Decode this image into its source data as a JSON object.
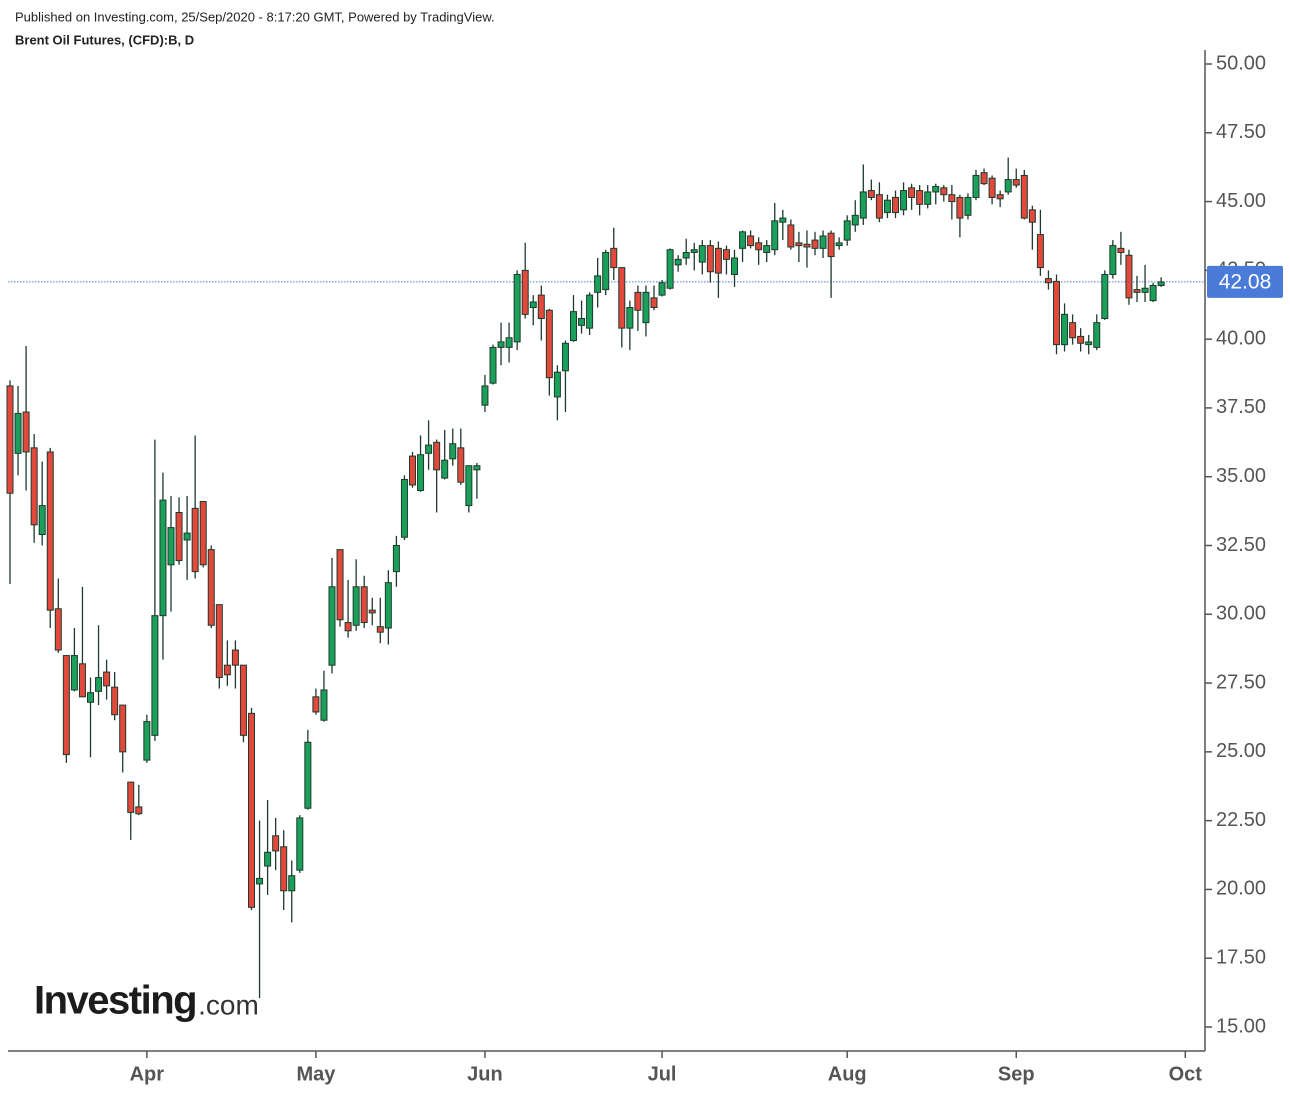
{
  "header": {
    "published": "Published on Investing.com, 25/Sep/2020 - 8:17:20 GMT, Powered by TradingView.",
    "title": "Brent Oil Futures, (CFD):B, D"
  },
  "watermark": {
    "brand": "Investing",
    "suffix": ".com"
  },
  "chart_data": {
    "type": "candlestick",
    "up_color": "#1aa05a",
    "down_color": "#e2483c",
    "line_color": "#1e3a2c",
    "last_price": 42.08,
    "last_price_color": "#4a7bd8",
    "ylim": [
      15,
      50.7
    ],
    "yticks": [
      {
        "value": 15,
        "label": "15.00"
      },
      {
        "value": 17.5,
        "label": "17.50"
      },
      {
        "value": 20,
        "label": "20.00"
      },
      {
        "value": 22.5,
        "label": "22.50"
      },
      {
        "value": 25,
        "label": "25.00"
      },
      {
        "value": 27.5,
        "label": "27.50"
      },
      {
        "value": 30,
        "label": "30.00"
      },
      {
        "value": 32.5,
        "label": "32.50"
      },
      {
        "value": 35,
        "label": "35.00"
      },
      {
        "value": 37.5,
        "label": "37.50"
      },
      {
        "value": 40,
        "label": "40.00"
      },
      {
        "value": 42.5,
        "label": "42.50"
      },
      {
        "value": 45,
        "label": "45.00"
      },
      {
        "value": 47.5,
        "label": "47.50"
      },
      {
        "value": 50,
        "label": "50.00"
      }
    ],
    "categories": [
      null,
      null,
      null,
      null,
      null,
      null,
      null,
      null,
      null,
      null,
      null,
      null,
      null,
      null,
      null,
      null,
      null,
      "Apr",
      null,
      null,
      null,
      null,
      null,
      null,
      null,
      null,
      null,
      null,
      null,
      null,
      null,
      null,
      null,
      null,
      null,
      null,
      null,
      null,
      "May",
      null,
      null,
      null,
      null,
      null,
      null,
      null,
      null,
      null,
      null,
      null,
      null,
      null,
      null,
      null,
      null,
      null,
      null,
      null,
      null,
      "Jun",
      null,
      null,
      null,
      null,
      null,
      null,
      null,
      null,
      null,
      null,
      null,
      null,
      null,
      null,
      null,
      null,
      null,
      null,
      null,
      null,
      null,
      "Jul",
      null,
      null,
      null,
      null,
      null,
      null,
      null,
      null,
      null,
      null,
      null,
      null,
      null,
      null,
      null,
      null,
      null,
      null,
      null,
      null,
      null,
      null,
      "Aug",
      null,
      null,
      null,
      null,
      null,
      null,
      null,
      null,
      null,
      null,
      null,
      null,
      null,
      null,
      null,
      null,
      null,
      null,
      null,
      null,
      "Sep",
      null,
      null,
      null,
      null,
      null,
      null,
      null,
      null,
      null,
      null,
      null,
      null,
      null,
      null,
      null,
      null,
      null,
      null,
      null,
      null,
      "Oct"
    ],
    "open": [
      38.3,
      35.85,
      37.35,
      36.05,
      32.9,
      35.9,
      30.2,
      28.5,
      27.25,
      28.2,
      26.8,
      27.2,
      27.9,
      27.35,
      26.7,
      23.9,
      23.0,
      24.7,
      25.6,
      29.95,
      31.8,
      33.7,
      32.7,
      33.85,
      34.1,
      32.35,
      30.35,
      28.15,
      28.7,
      28.15,
      26.4,
      20.2,
      20.85,
      21.95,
      21.55,
      19.95,
      20.7,
      22.95,
      27.0,
      26.15,
      28.15,
      32.35,
      29.7,
      29.6,
      31.0,
      30.15,
      29.55,
      29.5,
      31.55,
      32.8,
      35.75,
      34.5,
      35.85,
      36.25,
      34.95,
      35.65,
      36.05,
      33.95,
      35.25,
      37.6,
      38.4,
      39.7,
      39.7,
      39.9,
      42.5,
      41.15,
      41.6,
      41.05,
      37.9,
      38.85,
      39.95,
      40.5,
      40.4,
      41.7,
      41.8,
      43.3,
      42.6,
      40.4,
      41.7,
      40.6,
      41.5,
      41.6,
      41.85,
      42.7,
      42.95,
      43.15,
      42.8,
      43.4,
      43.3,
      43.25,
      42.35,
      43.3,
      43.75,
      43.5,
      43.15,
      43.25,
      44.25,
      44.15,
      43.5,
      43.45,
      43.6,
      43.3,
      43.85,
      43.4,
      43.6,
      44.15,
      44.4,
      45.4,
      45.25,
      44.6,
      45.15,
      44.7,
      45.5,
      45.4,
      44.9,
      45.35,
      45.5,
      45.25,
      45.15,
      44.5,
      45.15,
      46.05,
      45.85,
      45.25,
      45.35,
      45.8,
      45.95,
      44.7,
      43.8,
      42.2,
      42.1,
      39.8,
      40.6,
      40.1,
      39.8,
      39.7,
      40.75,
      42.35,
      43.3,
      43.05,
      41.8,
      41.7,
      41.4,
      41.95,
      null,
      null,
      null
    ],
    "high": [
      38.5,
      38.3,
      39.75,
      36.55,
      35.55,
      36.05,
      31.3,
      28.5,
      29.5,
      31.0,
      27.7,
      29.6,
      28.35,
      27.9,
      26.7,
      23.9,
      23.8,
      26.35,
      36.35,
      35.15,
      34.3,
      34.25,
      34.3,
      36.5,
      34.1,
      32.5,
      30.35,
      29.05,
      29.05,
      28.15,
      26.6,
      22.5,
      23.25,
      22.6,
      22.15,
      21.05,
      22.7,
      25.8,
      27.3,
      27.95,
      32.05,
      32.35,
      31.25,
      32.0,
      31.4,
      30.6,
      30.6,
      31.6,
      32.85,
      35.05,
      35.9,
      36.5,
      37.05,
      36.35,
      36.7,
      36.75,
      36.75,
      35.4,
      35.5,
      38.7,
      39.8,
      40.6,
      40.6,
      42.5,
      43.5,
      41.6,
      41.95,
      41.1,
      39.05,
      39.95,
      41.6,
      41.4,
      41.7,
      42.95,
      43.25,
      44.05,
      42.6,
      41.4,
      41.95,
      41.95,
      41.95,
      42.15,
      43.3,
      43.05,
      43.65,
      43.5,
      43.6,
      43.6,
      43.55,
      43.4,
      43.25,
      43.95,
      43.95,
      43.7,
      43.6,
      44.95,
      44.7,
      44.35,
      43.9,
      43.95,
      43.9,
      43.95,
      43.95,
      43.7,
      44.5,
      45.05,
      46.35,
      45.8,
      45.7,
      45.25,
      45.4,
      45.7,
      45.65,
      45.6,
      45.6,
      45.65,
      45.6,
      45.6,
      45.25,
      45.3,
      46.15,
      46.2,
      45.95,
      45.4,
      46.6,
      46.2,
      46.15,
      44.85,
      44.7,
      42.5,
      42.35,
      41.3,
      40.9,
      40.4,
      40.15,
      40.9,
      42.5,
      43.6,
      43.9,
      43.25,
      42.3,
      42.7,
      42.05,
      42.25,
      null,
      null,
      null
    ],
    "low": [
      31.1,
      35.05,
      34.5,
      32.6,
      32.5,
      29.5,
      28.6,
      24.6,
      27.2,
      27.0,
      24.8,
      26.7,
      26.9,
      26.15,
      24.25,
      21.8,
      22.7,
      24.6,
      25.4,
      28.35,
      30.1,
      31.8,
      31.25,
      31.3,
      31.7,
      29.5,
      27.3,
      27.4,
      27.3,
      25.35,
      19.25,
      16.05,
      19.8,
      20.7,
      19.25,
      18.8,
      20.6,
      22.9,
      26.35,
      26.1,
      27.85,
      29.55,
      29.15,
      29.4,
      29.5,
      29.6,
      28.95,
      28.9,
      31.0,
      32.7,
      34.6,
      34.45,
      35.25,
      33.7,
      34.9,
      35.4,
      34.7,
      33.7,
      34.2,
      37.35,
      38.35,
      39.05,
      39.15,
      39.6,
      40.75,
      40.5,
      39.95,
      37.95,
      37.05,
      37.35,
      39.9,
      40.2,
      40.15,
      41.15,
      41.6,
      42.15,
      39.7,
      39.6,
      40.3,
      40.1,
      41.05,
      41.55,
      41.8,
      42.45,
      42.7,
      42.5,
      42.35,
      42.05,
      41.5,
      42.35,
      41.9,
      42.8,
      43.3,
      42.7,
      42.8,
      43.05,
      43.6,
      43.25,
      42.8,
      42.6,
      43.05,
      42.95,
      41.5,
      43.25,
      43.4,
      43.9,
      44.15,
      45.05,
      44.25,
      44.4,
      44.4,
      44.5,
      44.7,
      44.5,
      44.75,
      44.9,
      45.0,
      44.35,
      43.7,
      44.35,
      45.05,
      45.6,
      44.9,
      44.8,
      45.25,
      45.5,
      44.35,
      43.25,
      42.3,
      41.8,
      39.45,
      39.55,
      39.8,
      39.55,
      39.45,
      39.6,
      40.7,
      42.2,
      42.7,
      41.25,
      41.35,
      41.35,
      41.35,
      41.9,
      null,
      null,
      null
    ],
    "close": [
      34.4,
      37.3,
      35.9,
      33.25,
      33.95,
      30.15,
      28.7,
      24.9,
      28.5,
      27.0,
      27.15,
      27.7,
      27.4,
      26.35,
      25.0,
      22.8,
      22.75,
      26.1,
      29.95,
      34.15,
      33.15,
      31.95,
      32.95,
      31.55,
      31.8,
      29.6,
      27.7,
      27.8,
      28.15,
      25.6,
      19.35,
      20.4,
      21.35,
      21.4,
      19.95,
      20.5,
      22.6,
      25.35,
      26.45,
      27.25,
      31.0,
      29.8,
      29.4,
      31.0,
      29.7,
      30.05,
      29.35,
      31.15,
      32.5,
      34.9,
      34.7,
      35.8,
      36.15,
      35.25,
      35.6,
      36.2,
      34.8,
      35.4,
      35.4,
      38.3,
      39.7,
      39.9,
      40.05,
      42.35,
      40.9,
      41.35,
      40.75,
      38.6,
      38.8,
      39.85,
      41.0,
      40.75,
      41.6,
      42.3,
      43.15,
      42.6,
      40.4,
      41.15,
      41.05,
      41.7,
      41.15,
      42.05,
      43.25,
      42.9,
      43.15,
      43.25,
      43.4,
      42.45,
      42.4,
      42.9,
      42.95,
      43.9,
      43.4,
      43.25,
      43.4,
      44.3,
      44.4,
      43.35,
      43.4,
      43.35,
      43.3,
      43.75,
      43.0,
      43.5,
      44.3,
      44.5,
      45.35,
      45.15,
      44.4,
      45.05,
      44.6,
      45.4,
      45.15,
      44.9,
      45.35,
      45.55,
      45.25,
      45.0,
      44.4,
      45.15,
      45.95,
      45.65,
      45.15,
      45.1,
      45.8,
      45.6,
      44.4,
      44.25,
      42.6,
      42.05,
      39.8,
      40.9,
      40.05,
      39.85,
      39.9,
      40.6,
      42.35,
      43.4,
      43.15,
      41.5,
      41.7,
      41.85,
      41.95,
      42.08,
      null,
      null,
      null
    ]
  }
}
